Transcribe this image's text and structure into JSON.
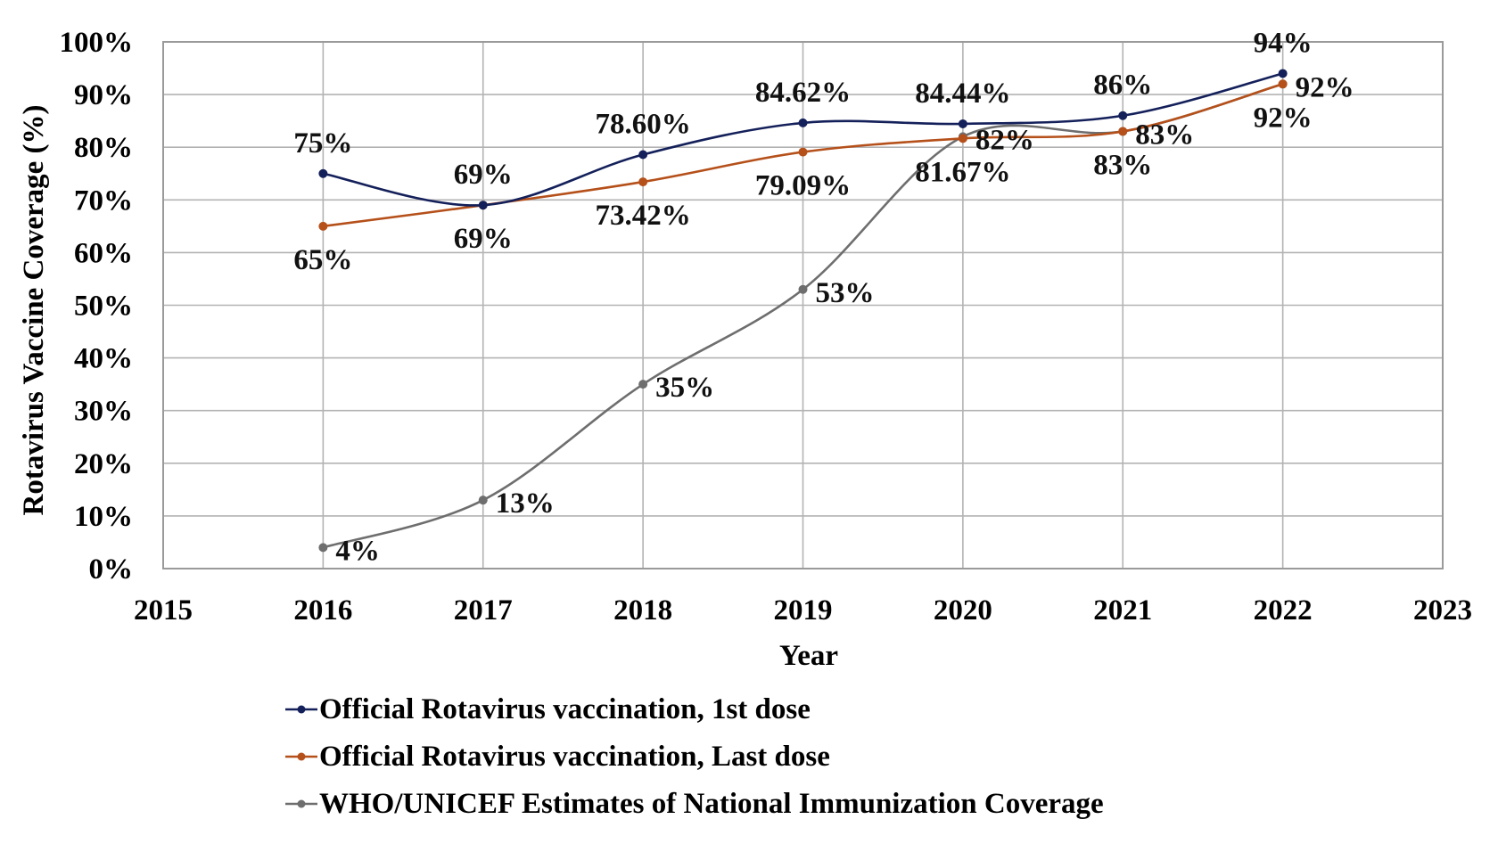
{
  "chart_data": {
    "type": "line",
    "title": "",
    "xlabel": "Year",
    "ylabel": "Rotavirus Vaccine Coverage (%)",
    "xlim": [
      2015,
      2023
    ],
    "ylim": [
      0,
      100
    ],
    "x_ticks": [
      "2015",
      "2016",
      "2017",
      "2018",
      "2019",
      "2020",
      "2021",
      "2022",
      "2023"
    ],
    "y_ticks": [
      "0%",
      "10%",
      "20%",
      "30%",
      "40%",
      "50%",
      "60%",
      "70%",
      "80%",
      "90%",
      "100%"
    ],
    "grid": true,
    "smoothed": true,
    "legend_position": "bottom",
    "x": [
      2016,
      2017,
      2018,
      2019,
      2020,
      2021,
      2022
    ],
    "series": [
      {
        "name": "Official Rotavirus vaccination, 1st dose",
        "color": "#14205a",
        "values": [
          75,
          69,
          78.6,
          84.62,
          84.44,
          86,
          94
        ],
        "labels": [
          "75%",
          "69%",
          "78.60%",
          "84.62%",
          "84.44%",
          "86%",
          "94%"
        ],
        "label_position": "above"
      },
      {
        "name": "Official Rotavirus vaccination, Last dose",
        "color": "#b5501a",
        "values": [
          65,
          69,
          73.42,
          79.09,
          81.67,
          83,
          92
        ],
        "labels": [
          "65%",
          "69%",
          "73.42%",
          "79.09%",
          "81.67%",
          "83%",
          "92%"
        ],
        "label_position": "below"
      },
      {
        "name": "WHO/UNICEF Estimates of National Immunization Coverage",
        "color": "#6e6e6e",
        "values": [
          4,
          13,
          35,
          53,
          82,
          83,
          92
        ],
        "labels": [
          "4%",
          "13%",
          "35%",
          "53%",
          "82%",
          "83%",
          "92%"
        ],
        "label_position": "right"
      }
    ]
  }
}
